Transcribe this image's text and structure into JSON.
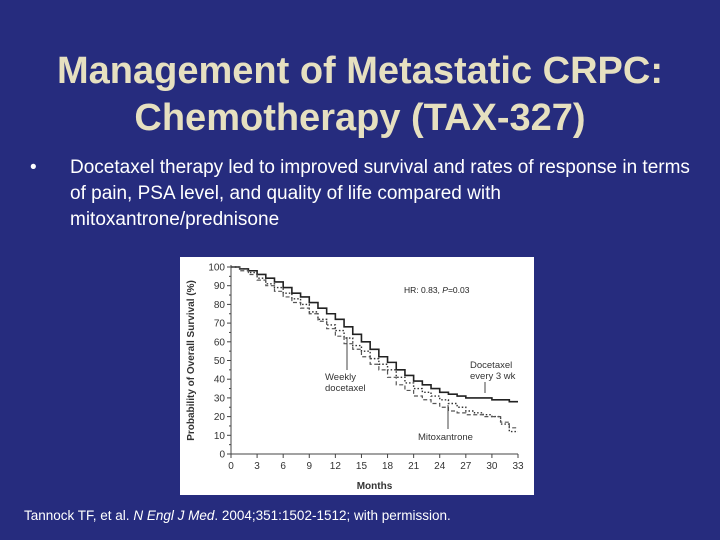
{
  "slide": {
    "title_line1": "Management of Metastatic CRPC:",
    "title_line2": "Chemotherapy (TAX-327)",
    "bullet_marker": "•",
    "bullet_text": "Docetaxel therapy led to improved survival and rates of response in terms of pain, PSA level, and quality of life compared with mitoxantrone/prednisone",
    "citation": {
      "authors": "Tannock TF, et al. ",
      "journal": "N Engl J Med",
      "details": ". 2004;351:1502-1512; with permission."
    }
  },
  "colors": {
    "background": "#262c7e",
    "title": "#e6e0c0",
    "text": "#ffffff"
  },
  "chart_data": {
    "type": "line",
    "xlabel": "Months",
    "ylabel": "Probability of Overall Survival (%)",
    "xlim": [
      0,
      33
    ],
    "ylim": [
      0,
      100
    ],
    "x_ticks": [
      "0",
      "3",
      "6",
      "9",
      "12",
      "15",
      "18",
      "21",
      "24",
      "27",
      "30",
      "33"
    ],
    "y_ticks": [
      "0",
      "10",
      "20",
      "30",
      "40",
      "50",
      "60",
      "70",
      "80",
      "90",
      "100"
    ],
    "annotation": {
      "text_prefix": "HR: 0.83, ",
      "p_label": "P",
      "text_suffix": "=0.03"
    },
    "series": [
      {
        "name": "Docetaxel every 3 wk",
        "label_lines": [
          "Docetaxel",
          "every 3 wk"
        ],
        "style": "solid",
        "points": [
          [
            0,
            100
          ],
          [
            1,
            99
          ],
          [
            2,
            98
          ],
          [
            3,
            96
          ],
          [
            4,
            94
          ],
          [
            5,
            92
          ],
          [
            6,
            89
          ],
          [
            7,
            86
          ],
          [
            8,
            84
          ],
          [
            9,
            81
          ],
          [
            10,
            78
          ],
          [
            11,
            75
          ],
          [
            12,
            72
          ],
          [
            13,
            68
          ],
          [
            14,
            64
          ],
          [
            15,
            60
          ],
          [
            16,
            56
          ],
          [
            17,
            52
          ],
          [
            18,
            49
          ],
          [
            19,
            45
          ],
          [
            20,
            42
          ],
          [
            21,
            39
          ],
          [
            22,
            37
          ],
          [
            23,
            35
          ],
          [
            24,
            33
          ],
          [
            25,
            32
          ],
          [
            26,
            31
          ],
          [
            27,
            30
          ],
          [
            28,
            30
          ],
          [
            29,
            30
          ],
          [
            30,
            29
          ],
          [
            31,
            29
          ],
          [
            32,
            28
          ],
          [
            33,
            28
          ]
        ]
      },
      {
        "name": "Weekly docetaxel",
        "label_lines": [
          "Weekly",
          "docetaxel"
        ],
        "style": "dotted",
        "points": [
          [
            0,
            100
          ],
          [
            1,
            99
          ],
          [
            2,
            97
          ],
          [
            3,
            94
          ],
          [
            4,
            91
          ],
          [
            5,
            89
          ],
          [
            6,
            86
          ],
          [
            7,
            83
          ],
          [
            8,
            80
          ],
          [
            9,
            76
          ],
          [
            10,
            72
          ],
          [
            11,
            69
          ],
          [
            12,
            66
          ],
          [
            13,
            62
          ],
          [
            14,
            58
          ],
          [
            15,
            55
          ],
          [
            16,
            51
          ],
          [
            17,
            48
          ],
          [
            18,
            45
          ],
          [
            19,
            41
          ],
          [
            20,
            38
          ],
          [
            21,
            35
          ],
          [
            22,
            33
          ],
          [
            23,
            31
          ],
          [
            24,
            29
          ],
          [
            25,
            27
          ],
          [
            26,
            25
          ],
          [
            27,
            23
          ],
          [
            28,
            22
          ],
          [
            29,
            21
          ],
          [
            30,
            20
          ],
          [
            31,
            16
          ],
          [
            32,
            12
          ],
          [
            33,
            12
          ]
        ]
      },
      {
        "name": "Mitoxantrone",
        "label_lines": [
          "Mitoxantrone"
        ],
        "style": "dashed",
        "points": [
          [
            0,
            100
          ],
          [
            1,
            98
          ],
          [
            2,
            96
          ],
          [
            3,
            93
          ],
          [
            4,
            90
          ],
          [
            5,
            87
          ],
          [
            6,
            84
          ],
          [
            7,
            81
          ],
          [
            8,
            78
          ],
          [
            9,
            75
          ],
          [
            10,
            71
          ],
          [
            11,
            67
          ],
          [
            12,
            63
          ],
          [
            13,
            59
          ],
          [
            14,
            56
          ],
          [
            15,
            52
          ],
          [
            16,
            48
          ],
          [
            17,
            45
          ],
          [
            18,
            41
          ],
          [
            19,
            37
          ],
          [
            20,
            34
          ],
          [
            21,
            31
          ],
          [
            22,
            29
          ],
          [
            23,
            27
          ],
          [
            24,
            25
          ],
          [
            25,
            23
          ],
          [
            26,
            22
          ],
          [
            27,
            21
          ],
          [
            28,
            21
          ],
          [
            29,
            20
          ],
          [
            30,
            20
          ],
          [
            31,
            17
          ],
          [
            32,
            14
          ],
          [
            33,
            14
          ]
        ]
      }
    ]
  }
}
